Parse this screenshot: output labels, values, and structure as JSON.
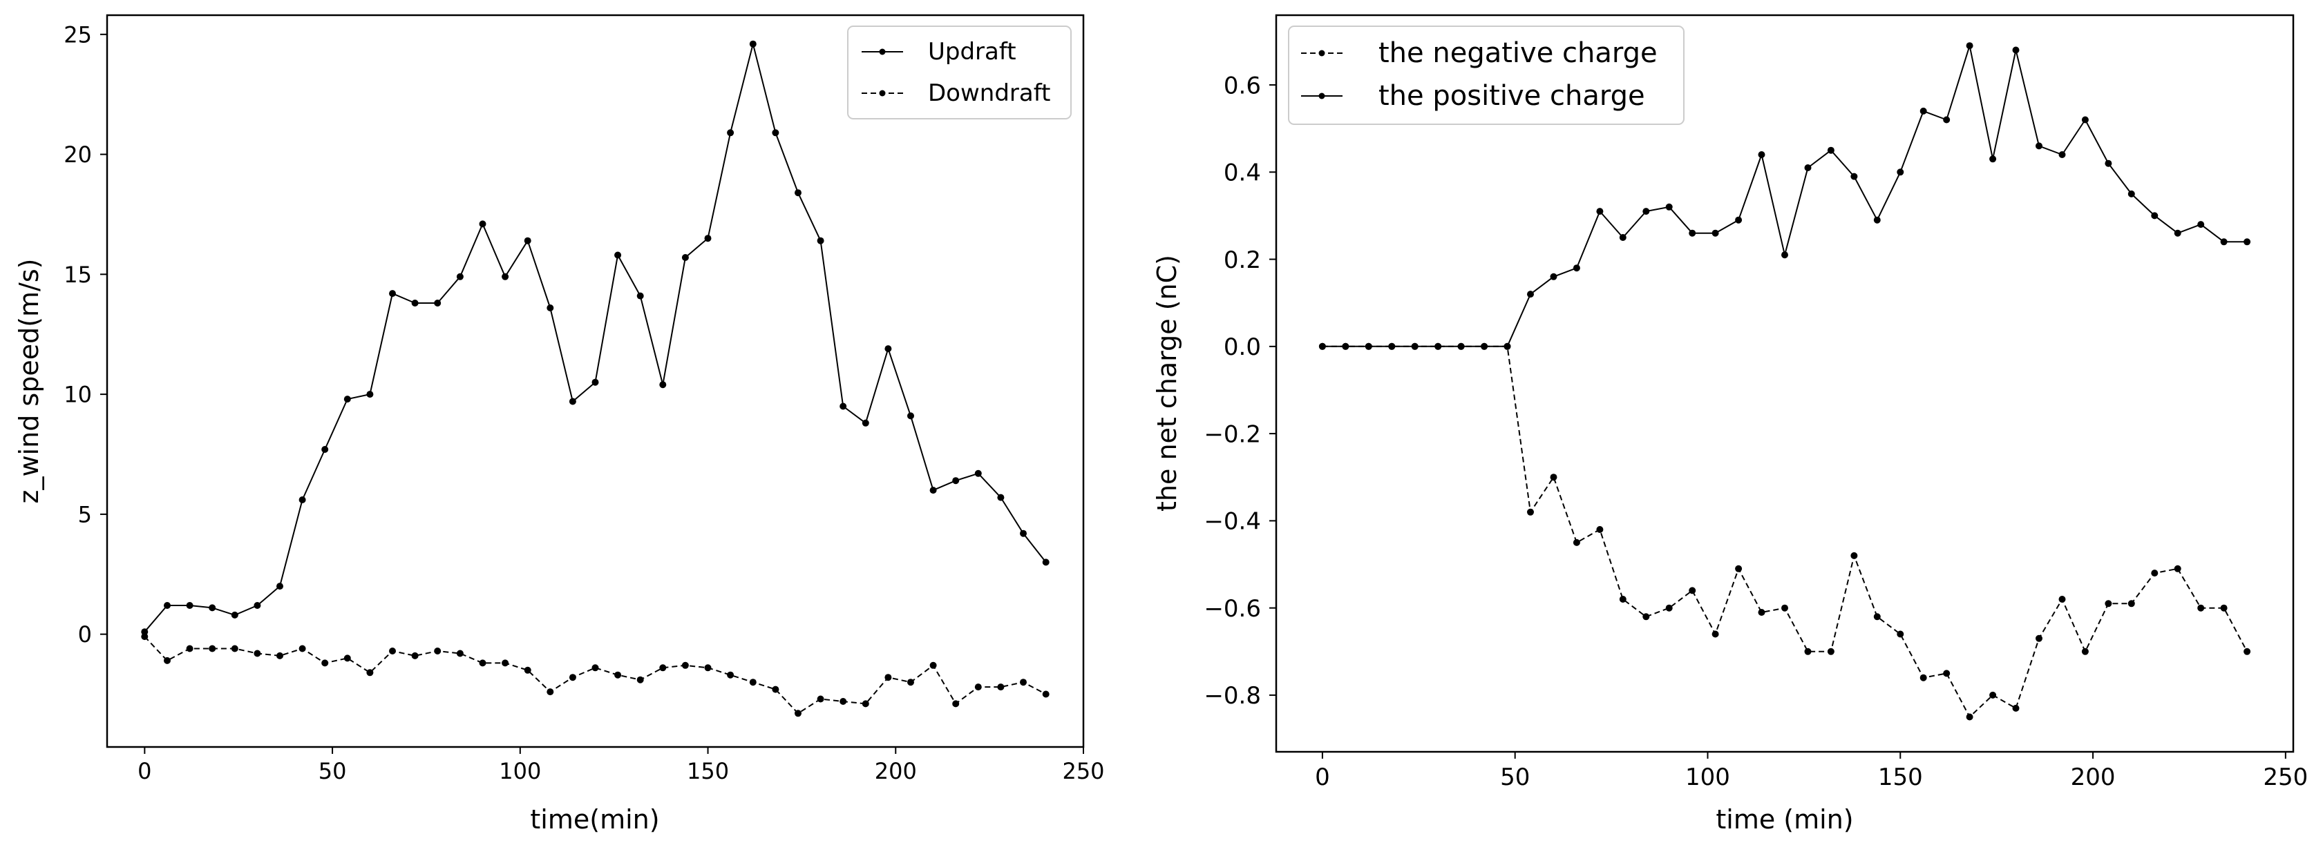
{
  "chart_data": [
    {
      "type": "line",
      "title": "",
      "xlabel": "time(min)",
      "ylabel": "z_wind speed(m/s)",
      "xlim": [
        -10,
        250
      ],
      "ylim": [
        -4.7,
        25.8
      ],
      "xticks": [
        0,
        50,
        100,
        150,
        200,
        250
      ],
      "xtick_labels": [
        "0",
        "50",
        "100",
        "150",
        "200",
        "250"
      ],
      "yticks": [
        0,
        5,
        10,
        15,
        20,
        25
      ],
      "ytick_labels": [
        "0",
        "5",
        "10",
        "15",
        "20",
        "25"
      ],
      "legend_position": "top-right",
      "x": [
        0,
        6,
        12,
        18,
        24,
        30,
        36,
        42,
        48,
        54,
        60,
        66,
        72,
        78,
        84,
        90,
        96,
        102,
        108,
        114,
        120,
        126,
        132,
        138,
        144,
        150,
        156,
        162,
        168,
        174,
        180,
        186,
        192,
        198,
        204,
        210,
        216,
        222,
        228,
        234,
        240
      ],
      "series": [
        {
          "name": "Updraft",
          "style": "solid",
          "values": [
            0.1,
            1.2,
            1.2,
            1.1,
            0.8,
            1.2,
            2.0,
            5.6,
            7.7,
            9.8,
            10.0,
            14.2,
            13.8,
            13.8,
            14.9,
            17.1,
            14.9,
            16.4,
            13.6,
            9.7,
            10.5,
            15.8,
            14.1,
            10.4,
            15.7,
            16.5,
            20.9,
            24.6,
            20.9,
            18.4,
            16.4,
            9.5,
            8.8,
            11.9,
            9.1,
            6.0,
            6.4,
            6.7,
            5.7,
            4.2,
            3.0
          ]
        },
        {
          "name": "Downdraft",
          "style": "dashed",
          "values": [
            -0.1,
            -1.1,
            -0.6,
            -0.6,
            -0.6,
            -0.8,
            -0.9,
            -0.6,
            -1.2,
            -1.0,
            -1.6,
            -0.7,
            -0.9,
            -0.7,
            -0.8,
            -1.2,
            -1.2,
            -1.5,
            -2.4,
            -1.8,
            -1.4,
            -1.7,
            -1.9,
            -1.4,
            -1.3,
            -1.4,
            -1.7,
            -2.0,
            -2.3,
            -3.3,
            -2.7,
            -2.8,
            -2.9,
            -1.8,
            -2.0,
            -1.3,
            -2.9,
            -2.2,
            -2.2,
            -2.0,
            -2.5
          ]
        }
      ]
    },
    {
      "type": "line",
      "title": "",
      "xlabel": "time (min)",
      "ylabel": "the net charge (nC)",
      "xlim": [
        -12,
        252
      ],
      "ylim": [
        -0.93,
        0.76
      ],
      "xticks": [
        0,
        50,
        100,
        150,
        200,
        250
      ],
      "xtick_labels": [
        "0",
        "50",
        "100",
        "150",
        "200",
        "250"
      ],
      "yticks": [
        -0.8,
        -0.6,
        -0.4,
        -0.2,
        0.0,
        0.2,
        0.4,
        0.6
      ],
      "ytick_labels": [
        "−0.8",
        "−0.6",
        "−0.4",
        "−0.2",
        "0.0",
        "0.2",
        "0.4",
        "0.6"
      ],
      "legend_position": "top-left",
      "x": [
        0,
        6,
        12,
        18,
        24,
        30,
        36,
        42,
        48,
        54,
        60,
        66,
        72,
        78,
        84,
        90,
        96,
        102,
        108,
        114,
        120,
        126,
        132,
        138,
        144,
        150,
        156,
        162,
        168,
        174,
        180,
        186,
        192,
        198,
        204,
        210,
        216,
        222,
        228,
        234,
        240
      ],
      "series": [
        {
          "name": "the negative charge",
          "style": "dashed",
          "values": [
            0.0,
            0.0,
            0.0,
            0.0,
            0.0,
            0.0,
            0.0,
            0.0,
            0.0,
            -0.38,
            -0.3,
            -0.45,
            -0.42,
            -0.58,
            -0.62,
            -0.6,
            -0.56,
            -0.66,
            -0.51,
            -0.61,
            -0.6,
            -0.7,
            -0.7,
            -0.48,
            -0.62,
            -0.66,
            -0.76,
            -0.75,
            -0.85,
            -0.8,
            -0.83,
            -0.67,
            -0.58,
            -0.7,
            -0.59,
            -0.59,
            -0.52,
            -0.51,
            -0.6,
            -0.6,
            -0.7
          ]
        },
        {
          "name": "the positive charge",
          "style": "solid",
          "values": [
            0.0,
            0.0,
            0.0,
            0.0,
            0.0,
            0.0,
            0.0,
            0.0,
            0.0,
            0.12,
            0.16,
            0.18,
            0.31,
            0.25,
            0.31,
            0.32,
            0.26,
            0.26,
            0.29,
            0.44,
            0.21,
            0.41,
            0.45,
            0.39,
            0.29,
            0.4,
            0.54,
            0.52,
            0.69,
            0.43,
            0.68,
            0.46,
            0.44,
            0.52,
            0.42,
            0.35,
            0.3,
            0.26,
            0.28,
            0.24,
            0.24
          ]
        }
      ]
    }
  ]
}
